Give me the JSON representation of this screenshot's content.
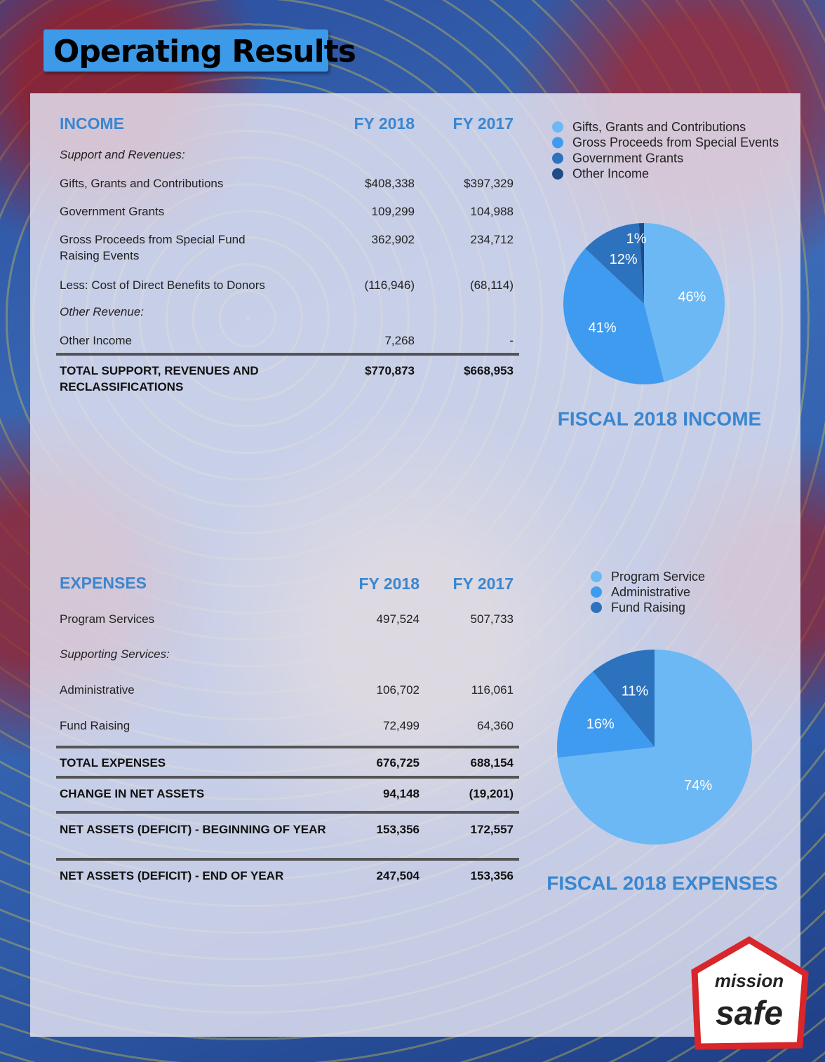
{
  "title": "Operating Results",
  "income": {
    "heading": "INCOME",
    "columns": [
      "FY 2018",
      "FY 2017"
    ],
    "groups": [
      {
        "label": "Support and Revenues:",
        "rows": [
          {
            "label": "Gifts, Grants and Contributions",
            "values": [
              "$408,338",
              "$397,329"
            ]
          },
          {
            "label": "Government Grants",
            "values": [
              "109,299",
              "104,988"
            ]
          },
          {
            "label": "Gross Proceeds from Special Fund Raising Events",
            "values": [
              "362,902",
              "234,712"
            ]
          },
          {
            "label": "Less: Cost of Direct Benefits to Donors",
            "values": [
              "(116,946)",
              "(68,114)"
            ]
          }
        ]
      },
      {
        "label": "Other Revenue:",
        "rows": [
          {
            "label": "Other Income",
            "values": [
              "7,268",
              "-"
            ]
          }
        ]
      }
    ],
    "total": {
      "label": "TOTAL SUPPORT, REVENUES AND RECLASSIFICATIONS",
      "values": [
        "$770,873",
        "$668,953"
      ]
    }
  },
  "expenses": {
    "heading": "EXPENSES",
    "columns": [
      "FY 2018",
      "FY 2017"
    ],
    "rows": [
      {
        "label": "Program Services",
        "values": [
          "497,524",
          "507,733"
        ]
      }
    ],
    "groups": [
      {
        "label": "Supporting Services:",
        "rows": [
          {
            "label": "Administrative",
            "values": [
              "106,702",
              "116,061"
            ]
          },
          {
            "label": "Fund Raising",
            "values": [
              "72,499",
              "64,360"
            ]
          }
        ]
      }
    ],
    "totals": [
      {
        "label": "TOTAL EXPENSES",
        "values": [
          "676,725",
          "688,154"
        ]
      },
      {
        "label": "CHANGE IN NET ASSETS",
        "values": [
          "94,148",
          "(19,201)"
        ]
      },
      {
        "label": "NET ASSETS (DEFICIT) - BEGINNING OF YEAR",
        "values": [
          "153,356",
          "172,557"
        ]
      },
      {
        "label": "NET ASSETS (DEFICIT) - END OF YEAR",
        "values": [
          "247,504",
          "153,356"
        ]
      }
    ]
  },
  "income_chart": {
    "type": "pie",
    "title": "FISCAL 2018 INCOME",
    "categories": [
      "Gifts, Grants and Contributions",
      "Gross Proceeds from Special Events",
      "Government Grants",
      "Other Income"
    ],
    "values": [
      46,
      41,
      12,
      1
    ],
    "value_labels": [
      "46%",
      "41%",
      "12%",
      "1%"
    ],
    "colors": [
      "#6bb8f5",
      "#3f9bef",
      "#2d72bd",
      "#1d4c86"
    ]
  },
  "expenses_chart": {
    "type": "pie",
    "title": "FISCAL 2018 EXPENSES",
    "categories": [
      "Program Service",
      "Administrative",
      "Fund Raising"
    ],
    "values": [
      74,
      16,
      11
    ],
    "value_labels": [
      "74%",
      "16%",
      "11%"
    ],
    "colors": [
      "#6bb8f5",
      "#3f9bef",
      "#2d72bd"
    ]
  },
  "logo": {
    "line1": "mission",
    "line2": "safe"
  }
}
